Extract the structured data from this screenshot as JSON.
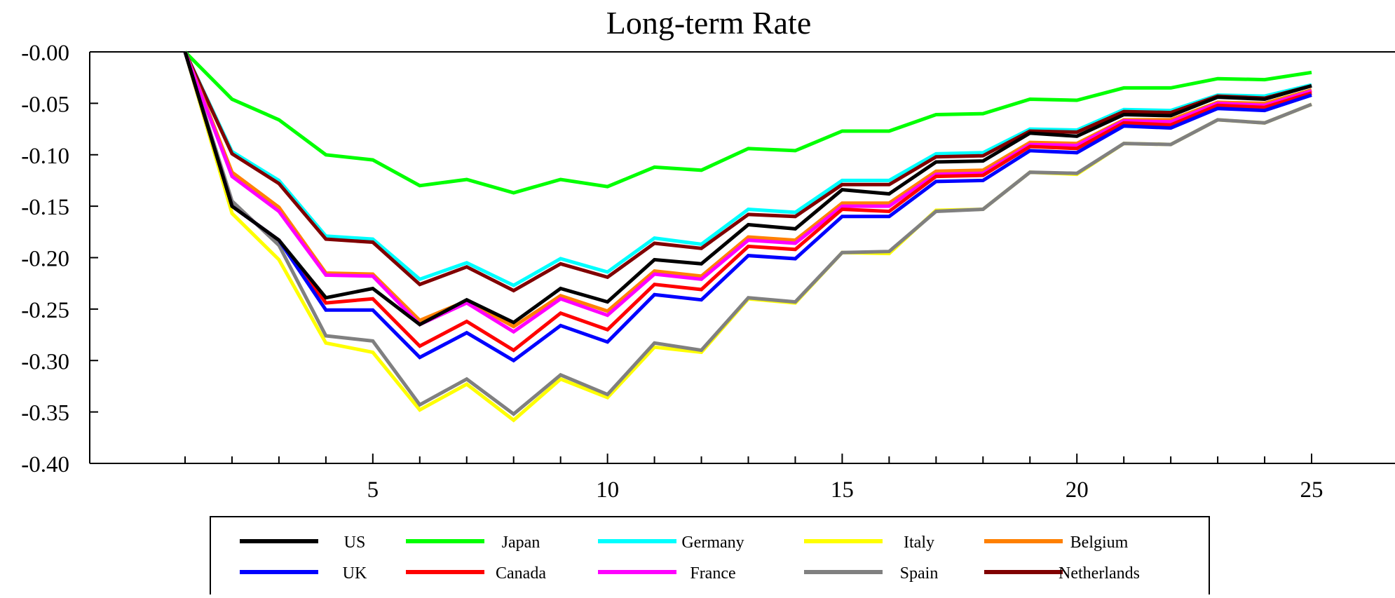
{
  "chart_data": {
    "type": "line",
    "title": "Long-term Rate",
    "xlabel": "",
    "ylabel": "",
    "xlim": [
      0,
      27
    ],
    "ylim": [
      -0.4,
      0.0
    ],
    "xticks_labeled": [
      5,
      10,
      15,
      20,
      25
    ],
    "xticks_minor": [
      1,
      2,
      3,
      4,
      6,
      7,
      8,
      9,
      11,
      12,
      13,
      14,
      16,
      17,
      18,
      19,
      21,
      22,
      23,
      24
    ],
    "yticks": [
      -0.0,
      -0.05,
      -0.1,
      -0.15,
      -0.2,
      -0.25,
      -0.3,
      -0.35,
      -0.4
    ],
    "ytick_labels": [
      "-0.00",
      "-0.05",
      "-0.10",
      "-0.15",
      "-0.20",
      "-0.25",
      "-0.30",
      "-0.35",
      "-0.40"
    ],
    "grid": false,
    "legend_position": "bottom",
    "x": [
      1,
      2,
      3,
      4,
      5,
      6,
      7,
      8,
      9,
      10,
      11,
      12,
      13,
      14,
      15,
      16,
      17,
      18,
      19,
      20,
      21,
      22,
      23,
      24,
      25
    ],
    "series": [
      {
        "name": "US",
        "color": "#000000",
        "values": [
          0.0,
          -0.15,
          -0.183,
          -0.239,
          -0.23,
          -0.265,
          -0.241,
          -0.263,
          -0.23,
          -0.243,
          -0.202,
          -0.206,
          -0.168,
          -0.172,
          -0.134,
          -0.138,
          -0.107,
          -0.106,
          -0.079,
          -0.082,
          -0.061,
          -0.062,
          -0.044,
          -0.046,
          -0.033
        ]
      },
      {
        "name": "UK",
        "color": "#0000ff",
        "values": [
          0.0,
          -0.15,
          -0.183,
          -0.251,
          -0.251,
          -0.297,
          -0.273,
          -0.3,
          -0.266,
          -0.282,
          -0.236,
          -0.241,
          -0.198,
          -0.201,
          -0.16,
          -0.16,
          -0.126,
          -0.125,
          -0.096,
          -0.098,
          -0.072,
          -0.074,
          -0.055,
          -0.057,
          -0.042
        ]
      },
      {
        "name": "Japan",
        "color": "#00ff00",
        "values": [
          0.0,
          -0.046,
          -0.066,
          -0.1,
          -0.105,
          -0.13,
          -0.124,
          -0.137,
          -0.124,
          -0.131,
          -0.112,
          -0.115,
          -0.094,
          -0.096,
          -0.077,
          -0.077,
          -0.061,
          -0.06,
          -0.046,
          -0.047,
          -0.035,
          -0.035,
          -0.026,
          -0.027,
          -0.02
        ]
      },
      {
        "name": "Canada",
        "color": "#ff0000",
        "values": [
          0.0,
          -0.15,
          -0.183,
          -0.244,
          -0.24,
          -0.286,
          -0.262,
          -0.29,
          -0.254,
          -0.27,
          -0.226,
          -0.231,
          -0.189,
          -0.192,
          -0.153,
          -0.155,
          -0.121,
          -0.12,
          -0.092,
          -0.094,
          -0.069,
          -0.071,
          -0.052,
          -0.054,
          -0.04
        ]
      },
      {
        "name": "Germany",
        "color": "#00ffff",
        "values": [
          0.0,
          -0.097,
          -0.125,
          -0.179,
          -0.182,
          -0.221,
          -0.205,
          -0.227,
          -0.201,
          -0.214,
          -0.181,
          -0.187,
          -0.153,
          -0.156,
          -0.125,
          -0.125,
          -0.099,
          -0.098,
          -0.075,
          -0.076,
          -0.056,
          -0.057,
          -0.042,
          -0.043,
          -0.032
        ]
      },
      {
        "name": "France",
        "color": "#ff00ff",
        "values": [
          0.0,
          -0.121,
          -0.155,
          -0.217,
          -0.218,
          -0.265,
          -0.244,
          -0.272,
          -0.24,
          -0.256,
          -0.216,
          -0.221,
          -0.183,
          -0.186,
          -0.15,
          -0.15,
          -0.119,
          -0.118,
          -0.09,
          -0.091,
          -0.067,
          -0.068,
          -0.05,
          -0.052,
          -0.038
        ]
      },
      {
        "name": "Italy",
        "color": "#ffff00",
        "values": [
          0.0,
          -0.157,
          -0.202,
          -0.283,
          -0.292,
          -0.348,
          -0.323,
          -0.358,
          -0.318,
          -0.336,
          -0.287,
          -0.292,
          -0.24,
          -0.244,
          -0.195,
          -0.196,
          -0.154,
          -0.153,
          -0.117,
          -0.119,
          -0.089,
          -0.09,
          -0.066,
          -0.069,
          -0.051
        ]
      },
      {
        "name": "Spain",
        "color": "#808080",
        "values": [
          0.0,
          -0.145,
          -0.188,
          -0.276,
          -0.281,
          -0.343,
          -0.318,
          -0.352,
          -0.314,
          -0.333,
          -0.283,
          -0.29,
          -0.239,
          -0.243,
          -0.195,
          -0.194,
          -0.155,
          -0.153,
          -0.117,
          -0.118,
          -0.089,
          -0.09,
          -0.066,
          -0.069,
          -0.051
        ]
      },
      {
        "name": "Belgium",
        "color": "#ff8000",
        "values": [
          0.0,
          -0.117,
          -0.151,
          -0.215,
          -0.216,
          -0.261,
          -0.242,
          -0.267,
          -0.237,
          -0.252,
          -0.213,
          -0.218,
          -0.18,
          -0.183,
          -0.147,
          -0.147,
          -0.116,
          -0.115,
          -0.088,
          -0.089,
          -0.066,
          -0.066,
          -0.049,
          -0.05,
          -0.037
        ]
      },
      {
        "name": "Netherlands",
        "color": "#800000",
        "values": [
          0.0,
          -0.099,
          -0.128,
          -0.182,
          -0.185,
          -0.226,
          -0.209,
          -0.232,
          -0.206,
          -0.219,
          -0.186,
          -0.191,
          -0.158,
          -0.16,
          -0.129,
          -0.129,
          -0.102,
          -0.101,
          -0.077,
          -0.078,
          -0.058,
          -0.059,
          -0.043,
          -0.045,
          -0.033
        ]
      }
    ]
  }
}
